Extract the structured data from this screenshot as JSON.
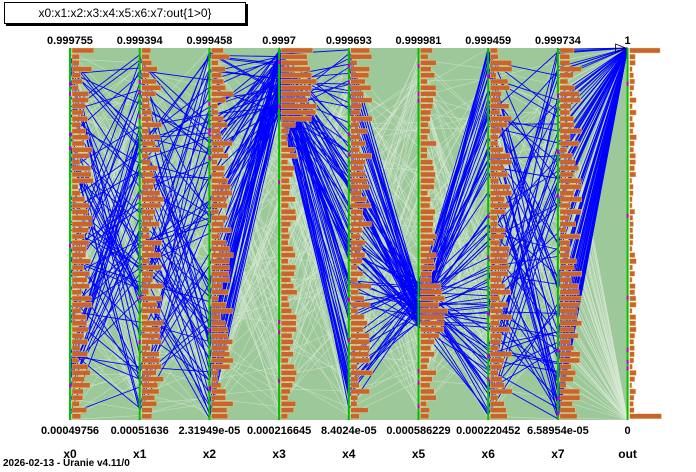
{
  "title": "x0:x1:x2:x3:x4:x5:x6:x7:out{1>0}",
  "footer": "2026-02-13 - Uranie v4.11/0",
  "colors": {
    "background_band": "#9cc89a",
    "thin_lines": "#d8e8d4",
    "selected_lines": "#0000ff",
    "histogram_fill": "#c8642c",
    "histogram_edge": "#f0d080",
    "axis_green": "#00c000",
    "axis_magenta": "#c000c0"
  },
  "chart_data": {
    "type": "parallel-coordinates",
    "selection": "out{1>0}",
    "axes": [
      {
        "name": "x0",
        "max_label": "0.999755",
        "min_label": "0.00049756",
        "max": 0.999755,
        "min": 0.00049756
      },
      {
        "name": "x1",
        "max_label": "0.999394",
        "min_label": "0.00051636",
        "max": 0.999394,
        "min": 0.00051636
      },
      {
        "name": "x2",
        "max_label": "0.999458",
        "min_label": "2.31949e-05",
        "max": 0.999458,
        "min": 2.31949e-05
      },
      {
        "name": "x3",
        "max_label": "0.9997",
        "min_label": "0.000216645",
        "max": 0.9997,
        "min": 0.000216645
      },
      {
        "name": "x4",
        "max_label": "0.999693",
        "min_label": "8.4024e-05",
        "max": 0.999693,
        "min": 8.4024e-05
      },
      {
        "name": "x5",
        "max_label": "0.999981",
        "min_label": "0.000586229",
        "max": 0.999981,
        "min": 0.000586229
      },
      {
        "name": "x6",
        "max_label": "0.999459",
        "min_label": "0.000220452",
        "max": 0.999459,
        "min": 0.000220452
      },
      {
        "name": "x7",
        "max_label": "0.999734",
        "min_label": "6.58954e-05",
        "max": 0.999734,
        "min": 6.58954e-05
      },
      {
        "name": "out",
        "max_label": "1",
        "min_label": "0",
        "max": 1,
        "min": 0
      }
    ],
    "selected_pattern": {
      "x0": "uniform",
      "x1": "uniform",
      "x2": "uniform",
      "x3": "high",
      "x4": "uniform",
      "x5": "low-middle",
      "x6": "uniform",
      "x7": "uniform",
      "out": 1
    },
    "grid": false,
    "legend": "none"
  }
}
